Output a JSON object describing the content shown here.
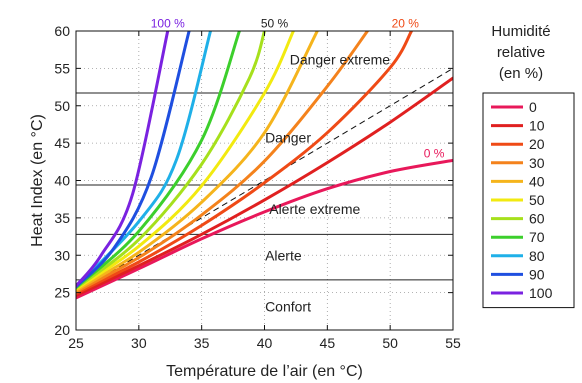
{
  "chart_data": {
    "type": "line",
    "xlabel": "Température de l’air (en °C)",
    "ylabel": "Heat Index (en °C)",
    "xlim": [
      25,
      55
    ],
    "ylim": [
      20,
      60
    ],
    "xticks": [
      25,
      30,
      35,
      40,
      45,
      50,
      55
    ],
    "yticks": [
      20,
      25,
      30,
      35,
      40,
      45,
      50,
      55,
      60
    ],
    "grid": true,
    "legend_title": [
      "Humidité",
      "relative",
      "(en %)"
    ],
    "legend_position": "right-outside",
    "series": [
      {
        "name": "0",
        "color": "#e8185a",
        "x": [
          25,
          30,
          35,
          40,
          45,
          50,
          55
        ],
        "y": [
          24.3,
          28.2,
          32.2,
          35.8,
          38.9,
          41.2,
          42.7
        ]
      },
      {
        "name": "10",
        "color": "#e02020",
        "x": [
          25,
          30,
          35,
          40,
          45,
          50,
          55
        ],
        "y": [
          24.6,
          28.6,
          32.8,
          37.4,
          42.4,
          47.8,
          53.7
        ]
      },
      {
        "name": "20",
        "color": "#ef4a16",
        "x": [
          25,
          30,
          35,
          40,
          45,
          50,
          51.7
        ],
        "y": [
          24.9,
          29.1,
          34.0,
          39.7,
          46.4,
          55.1,
          60.0
        ]
      },
      {
        "name": "30",
        "color": "#f4821c",
        "x": [
          25,
          30,
          35,
          40,
          45,
          48.2
        ],
        "y": [
          25.1,
          29.7,
          35.4,
          42.6,
          52.6,
          60.0
        ]
      },
      {
        "name": "40",
        "color": "#f5b41c",
        "x": [
          25,
          30,
          35,
          40,
          44.2
        ],
        "y": [
          25.3,
          30.4,
          37.1,
          46.4,
          60.0
        ]
      },
      {
        "name": "50",
        "color": "#f2ea10",
        "x": [
          25,
          30,
          35,
          40,
          42.3
        ],
        "y": [
          25.5,
          31.2,
          39.3,
          51.7,
          60.0
        ]
      },
      {
        "name": "60",
        "color": "#a6e01c",
        "x": [
          25,
          30,
          35,
          38.8,
          40.0
        ],
        "y": [
          25.6,
          32.1,
          42.2,
          53.7,
          60.0
        ]
      },
      {
        "name": "70",
        "color": "#3ccf2c",
        "x": [
          25,
          30,
          35,
          38.0
        ],
        "y": [
          25.7,
          33.2,
          45.4,
          60.0
        ]
      },
      {
        "name": "80",
        "color": "#1fb0e8",
        "x": [
          25,
          30,
          33,
          35.7
        ],
        "y": [
          25.8,
          34.5,
          42.8,
          60.0
        ]
      },
      {
        "name": "90",
        "color": "#1f4fe0",
        "x": [
          25,
          28,
          31,
          34.0
        ],
        "y": [
          25.8,
          30.9,
          40.5,
          60.0
        ]
      },
      {
        "name": "100",
        "color": "#7a22e0",
        "x": [
          25,
          27,
          29.5,
          32.3
        ],
        "y": [
          25.9,
          30.0,
          38.2,
          60.0
        ]
      }
    ],
    "reference_line": {
      "style": "dashed",
      "color": "#111111",
      "x": [
        25,
        55
      ],
      "y": [
        25,
        55
      ]
    },
    "thresholds": [
      26.7,
      32.8,
      39.4,
      51.7
    ],
    "zones": [
      {
        "label": "Confort",
        "x": 41,
        "y": 23
      },
      {
        "label": "Alerte",
        "x": 41,
        "y": 29.8
      },
      {
        "label": "Alerte extreme",
        "x": 44,
        "y": 36
      },
      {
        "label": "Danger",
        "x": 41,
        "y": 45.6
      },
      {
        "label": "Danger extreme",
        "x": 46,
        "y": 56
      }
    ],
    "curve_labels": [
      {
        "text": "100 %",
        "color": "#7a22e0",
        "x": 32.3,
        "y": 61
      },
      {
        "text": "50 %",
        "color": "#222222",
        "x": 40.8,
        "y": 61
      },
      {
        "text": "20 %",
        "color": "#ef4a16",
        "x": 51.2,
        "y": 61
      },
      {
        "text": "0 %",
        "color": "#e8185a",
        "x": 53.5,
        "y": 43.6
      }
    ]
  }
}
